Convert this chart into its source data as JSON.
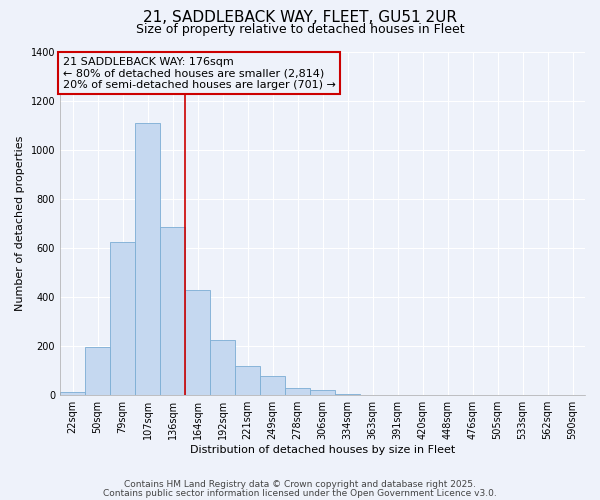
{
  "title": "21, SADDLEBACK WAY, FLEET, GU51 2UR",
  "subtitle": "Size of property relative to detached houses in Fleet",
  "xlabel": "Distribution of detached houses by size in Fleet",
  "ylabel": "Number of detached properties",
  "bar_labels": [
    "22sqm",
    "50sqm",
    "79sqm",
    "107sqm",
    "136sqm",
    "164sqm",
    "192sqm",
    "221sqm",
    "249sqm",
    "278sqm",
    "306sqm",
    "334sqm",
    "363sqm",
    "391sqm",
    "420sqm",
    "448sqm",
    "476sqm",
    "505sqm",
    "533sqm",
    "562sqm",
    "590sqm"
  ],
  "bar_values": [
    15,
    195,
    625,
    1110,
    685,
    430,
    225,
    120,
    80,
    30,
    20,
    5,
    2,
    0,
    0,
    0,
    0,
    0,
    0,
    0,
    0
  ],
  "bar_color": "#c5d8f0",
  "bar_edge_color": "#7badd4",
  "vline_x": 4.5,
  "vline_color": "#cc0000",
  "annotation_title": "21 SADDLEBACK WAY: 176sqm",
  "annotation_line1": "← 80% of detached houses are smaller (2,814)",
  "annotation_line2": "20% of semi-detached houses are larger (701) →",
  "annotation_box_color": "#cc0000",
  "ylim": [
    0,
    1400
  ],
  "yticks": [
    0,
    200,
    400,
    600,
    800,
    1000,
    1200,
    1400
  ],
  "footer1": "Contains HM Land Registry data © Crown copyright and database right 2025.",
  "footer2": "Contains public sector information licensed under the Open Government Licence v3.0.",
  "bg_color": "#eef2fa",
  "grid_color": "#ffffff",
  "title_fontsize": 11,
  "subtitle_fontsize": 9,
  "axis_label_fontsize": 8,
  "tick_fontsize": 7,
  "annotation_fontsize": 8,
  "footer_fontsize": 6.5
}
